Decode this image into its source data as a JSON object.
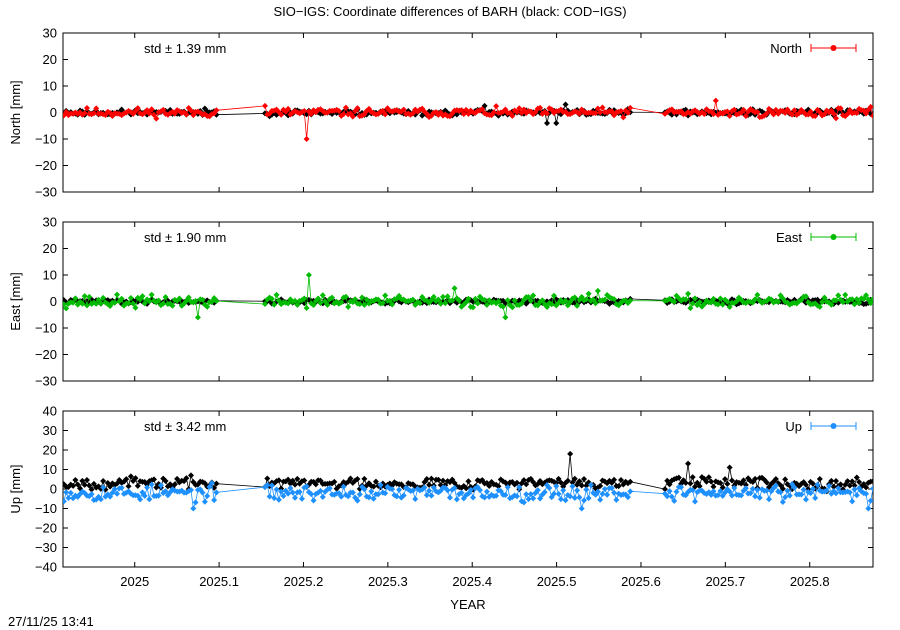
{
  "title": "SIO−IGS: Coordinate differences of BARH (black: COD−IGS)",
  "footer_timestamp": "27/11/25 13:41",
  "colors": {
    "north": "#ff0000",
    "east": "#00bb00",
    "up": "#1e90ff",
    "reference": "#000000"
  },
  "chart_data": [
    {
      "type": "line",
      "panel": "north",
      "ylabel": "North [mm]",
      "xlabel": "",
      "ylim": [
        -30,
        30
      ],
      "yticks": [
        -30,
        -20,
        -10,
        0,
        10,
        20,
        30
      ],
      "xlim": [
        2024.915,
        2025.875
      ],
      "xticks": [
        2025,
        2025.1,
        2025.2,
        2025.3,
        2025.4,
        2025.5,
        2025.6,
        2025.7,
        2025.8
      ],
      "std_label": "std ± 1.39 mm",
      "legend": "North",
      "legend_placement": "top-right",
      "series": [
        {
          "name": "North",
          "color": "#ff0000",
          "role": "main",
          "noise": 1.4,
          "seed": 11,
          "spikes": [
            [
              2025.205,
              -10
            ],
            [
              2025.153,
              2.5
            ],
            [
              2025.69,
              4.5
            ]
          ]
        },
        {
          "color": "#000000",
          "role": "reference",
          "noise": 0.9,
          "seed": 23,
          "spikes": [
            [
              2025.49,
              -4
            ],
            [
              2025.5,
              -4
            ],
            [
              2025.51,
              3
            ],
            [
              2025.415,
              2.5
            ]
          ]
        }
      ]
    },
    {
      "type": "line",
      "panel": "east",
      "ylabel": "East [mm]",
      "xlabel": "",
      "ylim": [
        -30,
        30
      ],
      "yticks": [
        -30,
        -20,
        -10,
        0,
        10,
        20,
        30
      ],
      "xlim": [
        2024.915,
        2025.875
      ],
      "xticks": [
        2025,
        2025.1,
        2025.2,
        2025.3,
        2025.4,
        2025.5,
        2025.6,
        2025.7,
        2025.8
      ],
      "std_label": "std ± 1.90 mm",
      "legend": "East",
      "legend_placement": "top-right",
      "series": [
        {
          "name": "East",
          "color": "#00bb00",
          "role": "main",
          "noise": 1.9,
          "seed": 37,
          "spikes": [
            [
              2025.207,
              10
            ],
            [
              2025.075,
              -6
            ],
            [
              2025.38,
              5
            ],
            [
              2025.44,
              -6
            ],
            [
              2025.55,
              4
            ]
          ]
        },
        {
          "color": "#000000",
          "role": "reference",
          "noise": 0.7,
          "seed": 41,
          "spikes": []
        }
      ]
    },
    {
      "type": "line",
      "panel": "up",
      "ylabel": "Up [mm]",
      "xlabel": "YEAR",
      "ylim": [
        -40,
        40
      ],
      "yticks": [
        -40,
        -30,
        -20,
        -10,
        0,
        10,
        20,
        30,
        40
      ],
      "xlim": [
        2024.915,
        2025.875
      ],
      "xticks": [
        2025,
        2025.1,
        2025.2,
        2025.3,
        2025.4,
        2025.5,
        2025.6,
        2025.7,
        2025.8
      ],
      "std_label": "std ± 3.42 mm",
      "legend": "Up",
      "legend_placement": "top-right",
      "series": [
        {
          "name": "Up",
          "color": "#1e90ff",
          "role": "main",
          "noise": 3.4,
          "seed": 53,
          "offset": -2,
          "spikes": [
            [
              2025.07,
              -10
            ],
            [
              2025.53,
              -10
            ],
            [
              2025.87,
              -10
            ]
          ]
        },
        {
          "color": "#000000",
          "role": "reference",
          "noise": 2.5,
          "seed": 67,
          "offset": 3,
          "spikes": [
            [
              2025.515,
              18
            ],
            [
              2025.655,
              13
            ],
            [
              2025.705,
              11
            ],
            [
              2025.15,
              1
            ]
          ]
        }
      ]
    }
  ],
  "gaps": [
    [
      2025.098,
      2025.152
    ],
    [
      2025.588,
      2025.628
    ]
  ]
}
